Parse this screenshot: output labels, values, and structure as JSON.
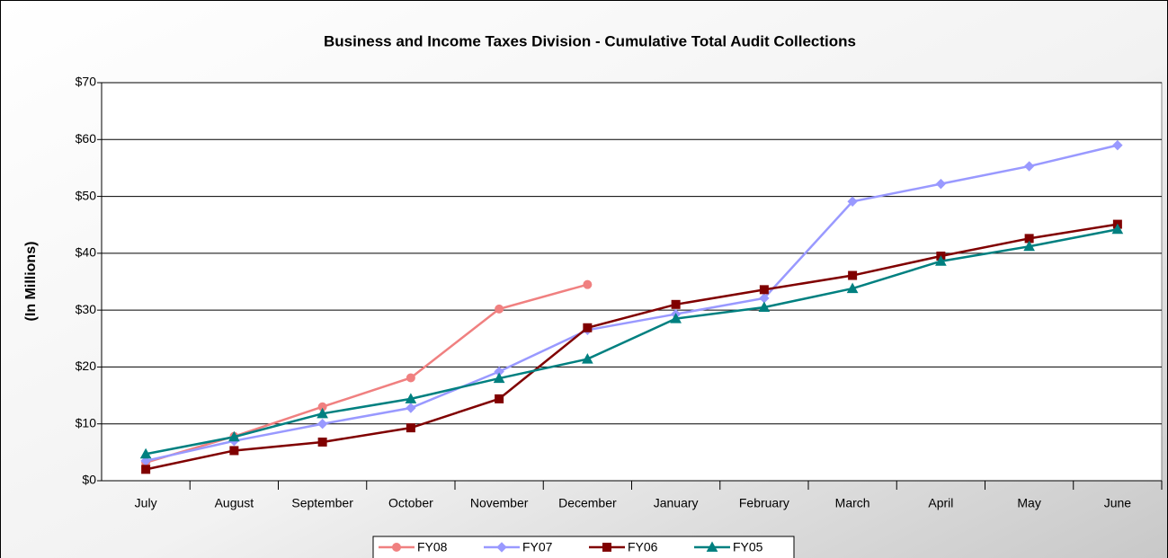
{
  "chart_data": {
    "type": "line",
    "title": "Business and Income Taxes Division - Cumulative Total Audit Collections",
    "y_label": "(In Millions)",
    "categories": [
      "July",
      "August",
      "September",
      "October",
      "November",
      "December",
      "January",
      "February",
      "March",
      "April",
      "May",
      "June"
    ],
    "series": [
      {
        "name": "FY08",
        "color": "#f08080",
        "marker": "circle",
        "values": [
          3.2,
          7.8,
          13,
          18.1,
          30.2,
          34.5,
          null,
          null,
          null,
          null,
          null,
          null
        ]
      },
      {
        "name": "FY07",
        "color": "#9999ff",
        "marker": "diamond",
        "values": [
          3.5,
          7,
          10,
          12.8,
          19.2,
          26.5,
          29.3,
          32.1,
          49.1,
          52.2,
          55.3,
          59
        ]
      },
      {
        "name": "FY06",
        "color": "#800000",
        "marker": "square",
        "values": [
          2,
          5.3,
          6.8,
          9.3,
          14.4,
          26.9,
          31,
          33.6,
          36.1,
          39.5,
          42.6,
          45.1
        ]
      },
      {
        "name": "FY05",
        "color": "#008080",
        "marker": "triangle",
        "values": [
          4.7,
          7.7,
          11.8,
          14.4,
          18,
          21.4,
          28.5,
          30.5,
          33.8,
          38.6,
          41.2,
          44.2
        ]
      }
    ],
    "ylim": [
      0,
      70
    ],
    "yticks": [
      {
        "value": 0,
        "label": "$0"
      },
      {
        "value": 10,
        "label": "$10"
      },
      {
        "value": 20,
        "label": "$20"
      },
      {
        "value": 30,
        "label": "$30"
      },
      {
        "value": 40,
        "label": "$40"
      },
      {
        "value": 50,
        "label": "$50"
      },
      {
        "value": 60,
        "label": "$60"
      },
      {
        "value": 70,
        "label": "$70"
      }
    ],
    "grid": true,
    "legend": "bottom"
  }
}
